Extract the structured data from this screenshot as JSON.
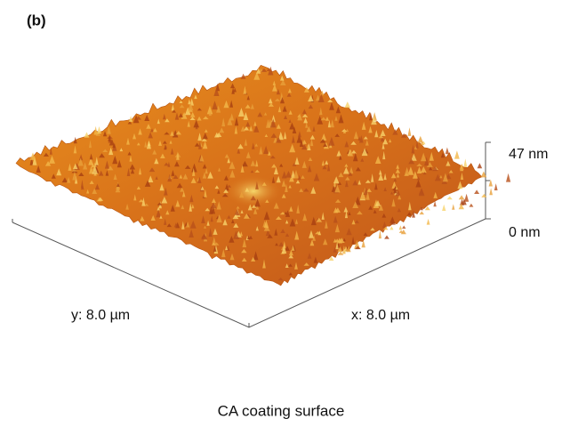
{
  "panel_label": "(b)",
  "z_axis": {
    "top_label": "47 nm",
    "bottom_label": "0 nm"
  },
  "y_axis_label": "y: 8.0 µm",
  "x_axis_label": "x: 8.0 µm",
  "caption": "CA coating surface"
}
